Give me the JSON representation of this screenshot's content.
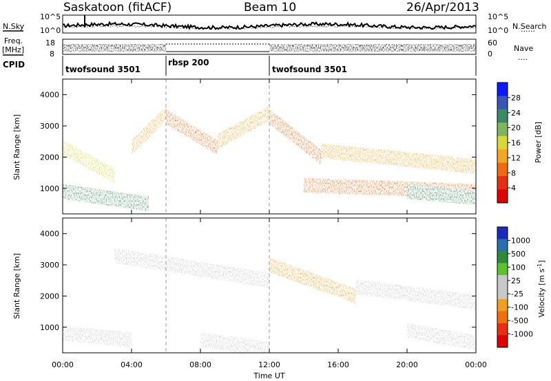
{
  "header": {
    "site": "Saskatoon (fitACF)",
    "beam": "Beam 10",
    "date": "26/Apr/2013"
  },
  "side_labels": {
    "nsky": "N.Sky",
    "nsearch": "N.Search",
    "nsearch_style": "······",
    "freq": "Freq.",
    "freq_unit": "[MHz]",
    "nave": "Nave",
    "nave_style": "····",
    "cpid": "CPID"
  },
  "noise_axes": {
    "left_ticks": [
      "10^5",
      "10^0"
    ],
    "right_ticks": [
      "10^5",
      "10^0"
    ]
  },
  "freq_axes": {
    "left_ticks": [
      "18",
      "8"
    ],
    "right_ticks": [
      "60",
      "0"
    ]
  },
  "cpid_segments": [
    {
      "label": "twofsound 3501",
      "start_h": 0,
      "end_h": 6
    },
    {
      "label": "rbsp 200",
      "start_h": 6,
      "end_h": 12
    },
    {
      "label": "twofsound 3501",
      "start_h": 12,
      "end_h": 24
    }
  ],
  "time_axis": {
    "label": "Time UT",
    "ticks": [
      "00:00",
      "04:00",
      "08:00",
      "12:00",
      "16:00",
      "20:00",
      "00:00"
    ],
    "tick_hours": [
      0,
      4,
      8,
      12,
      16,
      20,
      24
    ],
    "range_h": [
      0,
      24
    ]
  },
  "range_axis": {
    "label": "Slant Range [km]",
    "ticks": [
      "4000",
      "3000",
      "2000",
      "1000"
    ],
    "tick_values": [
      4000,
      3000,
      2000,
      1000
    ],
    "range_km": [
      180,
      4500
    ]
  },
  "power_colorbar": {
    "label": "Power [dB]",
    "ticks": [
      "28",
      "24",
      "20",
      "16",
      "12",
      "8",
      "4"
    ],
    "colors": [
      "#0a19ff",
      "#3a55b8",
      "#3a8a66",
      "#7fb55f",
      "#d9d838",
      "#f5a623",
      "#f06a14",
      "#e62f10",
      "#e00000"
    ]
  },
  "velocity_colorbar": {
    "label": "Velocity [m s",
    "label_sup": "-1",
    "label_close": "]",
    "ticks": [
      "1000",
      "500",
      "100",
      "25",
      "-25",
      "-100",
      "-500",
      "-1000"
    ],
    "colors": [
      "#1a2bbd",
      "#2a6fb0",
      "#2f8a3c",
      "#5cc22e",
      "#c8c8c8",
      "#c8c8c8",
      "#f0a020",
      "#f07010",
      "#e83010",
      "#e00000"
    ]
  },
  "chart_data": {
    "type": "heatmap",
    "title": "Saskatoon (fitACF)",
    "xlabel": "Time UT",
    "ylabel": "Slant Range [km]",
    "xlim_hours": [
      0,
      24
    ],
    "ylim_km": [
      180,
      4500
    ],
    "mode_changes_h": [
      6,
      12
    ],
    "panels": [
      {
        "name": "Power",
        "unit": "dB",
        "colorbar_range": [
          0,
          32
        ],
        "scatter_bands": [
          {
            "t_start": 0,
            "t_end": 3,
            "range_start_km": 2300,
            "range_end_km": 1400,
            "value": 16
          },
          {
            "t_start": 0,
            "t_end": 5,
            "range_start_km": 900,
            "range_end_km": 500,
            "value": 22
          },
          {
            "t_start": 4,
            "t_end": 6,
            "range_start_km": 2300,
            "range_end_km": 3400,
            "value": 14
          },
          {
            "t_start": 6,
            "t_end": 9,
            "range_start_km": 3300,
            "range_end_km": 2300,
            "value": 10
          },
          {
            "t_start": 9,
            "t_end": 12,
            "range_start_km": 2500,
            "range_end_km": 3400,
            "value": 12
          },
          {
            "t_start": 12,
            "t_end": 15,
            "range_start_km": 3300,
            "range_end_km": 2000,
            "value": 10
          },
          {
            "t_start": 15,
            "t_end": 24,
            "range_start_km": 2200,
            "range_end_km": 1700,
            "value": 12
          },
          {
            "t_start": 14,
            "t_end": 24,
            "range_start_km": 1100,
            "range_end_km": 900,
            "value": 8
          },
          {
            "t_start": 20,
            "t_end": 24,
            "range_start_km": 900,
            "range_end_km": 700,
            "value": 22
          }
        ]
      },
      {
        "name": "Velocity",
        "unit": "m s-1",
        "colorbar_range": [
          -1000,
          1000
        ],
        "scatter_bands": [
          {
            "t_start": 0,
            "t_end": 4,
            "range_start_km": 800,
            "range_end_km": 600,
            "value": 80
          },
          {
            "t_start": 3,
            "t_end": 12,
            "range_start_km": 3300,
            "range_end_km": 2500,
            "value": 0
          },
          {
            "t_start": 12,
            "t_end": 17,
            "range_start_km": 3000,
            "range_end_km": 2000,
            "value": -300
          },
          {
            "t_start": 17,
            "t_end": 24,
            "range_start_km": 2300,
            "range_end_km": 1800,
            "value": 30
          },
          {
            "t_start": 8,
            "t_end": 12,
            "range_start_km": 600,
            "range_end_km": 300,
            "value": -200
          },
          {
            "t_start": 20,
            "t_end": 24,
            "range_start_km": 900,
            "range_end_km": 500,
            "value": -150
          }
        ]
      }
    ]
  }
}
